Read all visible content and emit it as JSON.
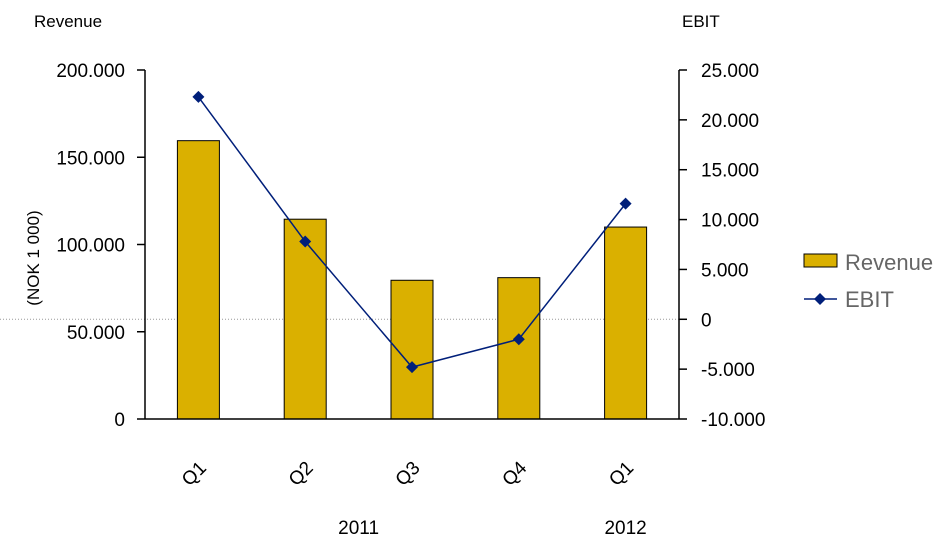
{
  "chart_data": {
    "type": "bar",
    "combo_overlay": "line",
    "categories": [
      "Q1",
      "Q2",
      "Q3",
      "Q4",
      "Q1"
    ],
    "year_groups": [
      {
        "label": "2011",
        "span": [
          0,
          3
        ]
      },
      {
        "label": "2012",
        "span": [
          4,
          4
        ]
      }
    ],
    "series": [
      {
        "name": "Revenue",
        "type": "bar",
        "axis": "left",
        "color": "#DAB000",
        "values": [
          159500,
          114500,
          79500,
          81000,
          110000
        ]
      },
      {
        "name": "EBIT",
        "type": "line",
        "axis": "right",
        "color": "#001F7A",
        "values": [
          22300,
          7800,
          -4800,
          -2000,
          11600
        ]
      }
    ],
    "left_axis": {
      "title": "Revenue",
      "ylabel": "(NOK 1 000)",
      "ylim": [
        0,
        200000
      ],
      "ticks": [
        0,
        50000,
        100000,
        150000,
        200000
      ],
      "tick_labels": [
        "0",
        "50.000",
        "100.000",
        "150.000",
        "200.000"
      ]
    },
    "right_axis": {
      "title": "EBIT",
      "ylim": [
        -10000,
        25000
      ],
      "ticks": [
        -10000,
        -5000,
        0,
        5000,
        10000,
        15000,
        20000,
        25000
      ],
      "tick_labels": [
        "-10.000",
        "-5.000",
        "0",
        "5.000",
        "10.000",
        "15.000",
        "20.000",
        "25.000"
      ]
    },
    "legend": {
      "placement": "right",
      "items": [
        "Revenue",
        "EBIT"
      ]
    },
    "grid": false,
    "zero_line": "dotted"
  }
}
